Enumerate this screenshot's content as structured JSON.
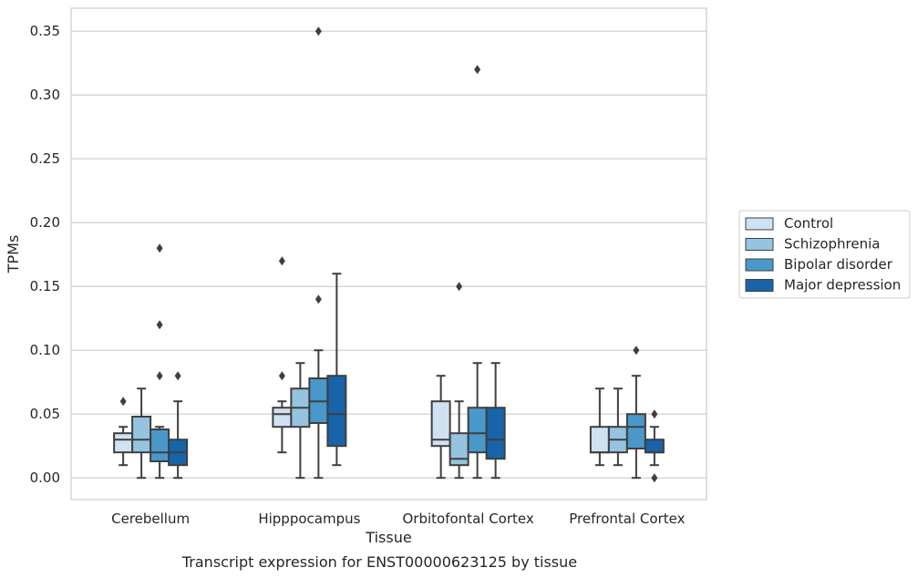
{
  "chart_data": {
    "type": "box",
    "title": "",
    "caption": "Transcript expression for ENST00000623125 by tissue",
    "xlabel": "Tissue",
    "ylabel": "TPMs",
    "ylim": [
      -0.017,
      0.368
    ],
    "yticks": [
      0.0,
      0.05,
      0.1,
      0.15,
      0.2,
      0.25,
      0.3,
      0.35
    ],
    "ytick_labels": [
      "0.00",
      "0.05",
      "0.10",
      "0.15",
      "0.20",
      "0.25",
      "0.30",
      "0.35"
    ],
    "grid": "horizontal",
    "legend_position": "right",
    "categories": [
      "Cerebellum",
      "Hipppocampus",
      "Orbitofontal Cortex",
      "Prefrontal Cortex"
    ],
    "series": [
      {
        "name": "Control",
        "color": "#d0e1f2",
        "boxes": [
          {
            "whisker_low": 0.01,
            "q1": 0.02,
            "median": 0.03,
            "q3": 0.035,
            "whisker_high": 0.04,
            "outliers": [
              0.06
            ]
          },
          {
            "whisker_low": 0.02,
            "q1": 0.04,
            "median": 0.05,
            "q3": 0.055,
            "whisker_high": 0.06,
            "outliers": [
              0.08,
              0.17
            ]
          },
          {
            "whisker_low": 0.0,
            "q1": 0.025,
            "median": 0.03,
            "q3": 0.06,
            "whisker_high": 0.08,
            "outliers": []
          },
          {
            "whisker_low": 0.01,
            "q1": 0.02,
            "median": 0.02,
            "q3": 0.04,
            "whisker_high": 0.07,
            "outliers": []
          }
        ]
      },
      {
        "name": "Schizophrenia",
        "color": "#94c4df",
        "boxes": [
          {
            "whisker_low": 0.0,
            "q1": 0.02,
            "median": 0.03,
            "q3": 0.048,
            "whisker_high": 0.07,
            "outliers": []
          },
          {
            "whisker_low": 0.0,
            "q1": 0.04,
            "median": 0.055,
            "q3": 0.07,
            "whisker_high": 0.09,
            "outliers": []
          },
          {
            "whisker_low": 0.0,
            "q1": 0.01,
            "median": 0.015,
            "q3": 0.035,
            "whisker_high": 0.06,
            "outliers": [
              0.15
            ]
          },
          {
            "whisker_low": 0.01,
            "q1": 0.02,
            "median": 0.03,
            "q3": 0.04,
            "whisker_high": 0.07,
            "outliers": []
          }
        ]
      },
      {
        "name": "Bipolar disorder",
        "color": "#4a98c9",
        "boxes": [
          {
            "whisker_low": 0.0,
            "q1": 0.013,
            "median": 0.02,
            "q3": 0.038,
            "whisker_high": 0.04,
            "outliers": [
              0.08,
              0.12,
              0.18
            ]
          },
          {
            "whisker_low": 0.0,
            "q1": 0.043,
            "median": 0.06,
            "q3": 0.078,
            "whisker_high": 0.1,
            "outliers": [
              0.14,
              0.35
            ]
          },
          {
            "whisker_low": 0.0,
            "q1": 0.02,
            "median": 0.035,
            "q3": 0.055,
            "whisker_high": 0.09,
            "outliers": [
              0.32
            ]
          },
          {
            "whisker_low": 0.0,
            "q1": 0.023,
            "median": 0.04,
            "q3": 0.05,
            "whisker_high": 0.08,
            "outliers": [
              0.1
            ]
          }
        ]
      },
      {
        "name": "Major depression",
        "color": "#1764ab",
        "boxes": [
          {
            "whisker_low": 0.0,
            "q1": 0.01,
            "median": 0.02,
            "q3": 0.03,
            "whisker_high": 0.06,
            "outliers": [
              0.08
            ]
          },
          {
            "whisker_low": 0.01,
            "q1": 0.025,
            "median": 0.05,
            "q3": 0.08,
            "whisker_high": 0.16,
            "outliers": []
          },
          {
            "whisker_low": 0.0,
            "q1": 0.015,
            "median": 0.03,
            "q3": 0.055,
            "whisker_high": 0.09,
            "outliers": []
          },
          {
            "whisker_low": 0.01,
            "q1": 0.02,
            "median": 0.02,
            "q3": 0.03,
            "whisker_high": 0.04,
            "outliers": [
              0.0,
              0.05
            ]
          }
        ]
      }
    ]
  }
}
